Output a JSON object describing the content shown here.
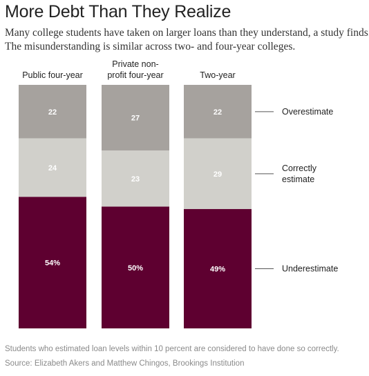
{
  "header": {
    "title": "More Debt Than They Realize",
    "subtitle_lines": [
      "Many college students have taken on larger loans than they understand, a study finds.",
      "The misunderstanding is similar across two- and four-year colleges."
    ]
  },
  "chart_data": {
    "type": "bar",
    "stacked": true,
    "orientation": "vertical",
    "unit": "percent",
    "ylim": [
      0,
      100
    ],
    "grid": false,
    "legend_placement": "right",
    "categories": [
      "Public four-year",
      "Private non-profit four-year",
      "Two-year"
    ],
    "category_label_lines": [
      [
        "Public four-year"
      ],
      [
        "Private non-",
        "profit four-year"
      ],
      [
        "Two-year"
      ]
    ],
    "series": [
      {
        "name": "Overestimate",
        "label_lines": [
          "Overestimate"
        ],
        "values": [
          22,
          27,
          22
        ],
        "value_labels": [
          "22",
          "27",
          "22"
        ],
        "color": "#a6a29e",
        "text_color": "#ffffff"
      },
      {
        "name": "Correctly estimate",
        "label_lines": [
          "Correctly",
          "estimate"
        ],
        "values": [
          24,
          23,
          29
        ],
        "value_labels": [
          "24",
          "23",
          "29"
        ],
        "color": "#d1d0cb",
        "text_color": "#ffffff"
      },
      {
        "name": "Underestimate",
        "label_lines": [
          "Underestimate"
        ],
        "values": [
          54,
          50,
          49
        ],
        "value_labels": [
          "54%",
          "50%",
          "49%"
        ],
        "color": "#5e0030",
        "text_color": "#ffffff"
      }
    ]
  },
  "notes": {
    "footnote": "Students who estimated loan levels within 10 percent are considered to have done so correctly.",
    "source": "Source: Elizabeth Akers and Matthew Chingos, Brookings Institution"
  }
}
